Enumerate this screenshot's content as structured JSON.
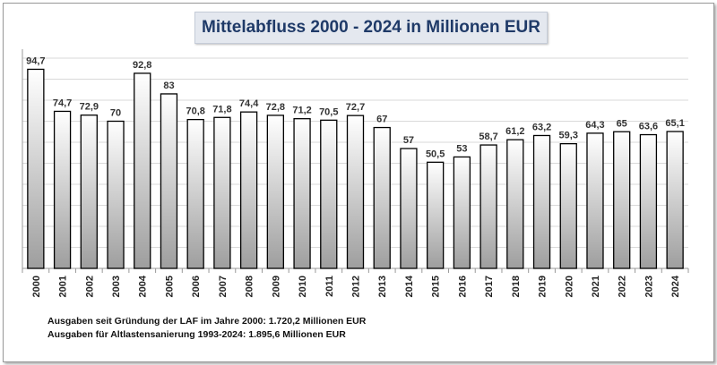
{
  "chart_data": {
    "type": "bar",
    "title": "Mittelabfluss 2000 - 2024 in Millionen EUR",
    "categories": [
      "2000",
      "2001",
      "2002",
      "2003",
      "2004",
      "2005",
      "2006",
      "2007",
      "2008",
      "2009",
      "2010",
      "2011",
      "2012",
      "2013",
      "2014",
      "2015",
      "2016",
      "2017",
      "2018",
      "2019",
      "2020",
      "2021",
      "2022",
      "2023",
      "2024"
    ],
    "values": [
      94.7,
      74.7,
      72.9,
      70,
      92.8,
      83,
      70.8,
      71.8,
      74.4,
      72.8,
      71.2,
      70.5,
      72.7,
      67,
      57,
      50.5,
      53,
      58.7,
      61.2,
      63.2,
      59.3,
      64.3,
      65,
      63.6,
      65.1
    ],
    "value_labels": [
      "94,7",
      "74,7",
      "72,9",
      "70",
      "92,8",
      "83",
      "70,8",
      "71,8",
      "74,4",
      "72,8",
      "71,2",
      "70,5",
      "72,7",
      "67",
      "57",
      "50,5",
      "53",
      "58,7",
      "61,2",
      "63,2",
      "59,3",
      "64,3",
      "65",
      "63,6",
      "65,1"
    ],
    "ylim": [
      0,
      100
    ],
    "grid": true,
    "legend": "none",
    "notes": [
      "Ausgaben seit Gründung der LAF im Jahre 2000: 1.720,2 Millionen EUR",
      "Ausgaben für Altlastensanierung 1993-2024: 1.895,6 Millionen EUR"
    ]
  },
  "colors": {
    "title_text": "#1f3a68",
    "title_bg": "#e4e8ef",
    "bar_top": "#ffffff",
    "bar_bottom": "#9e9e9e",
    "bar_stroke": "#000000",
    "grid": "#d9d9d9"
  }
}
